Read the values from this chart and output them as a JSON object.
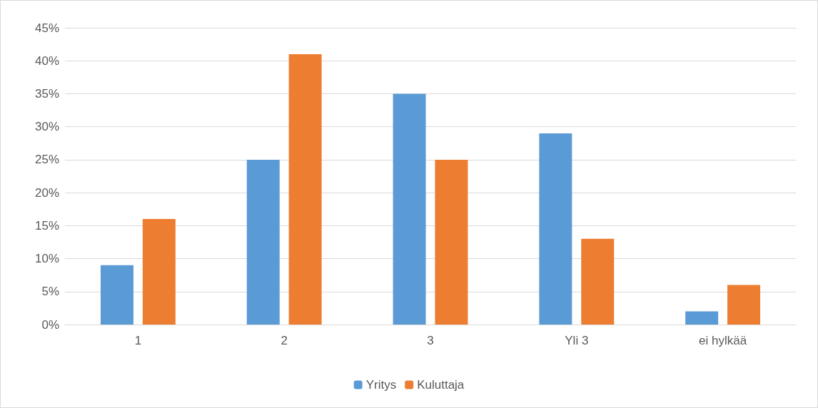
{
  "chart_data": {
    "type": "bar",
    "categories": [
      "1",
      "2",
      "3",
      "Yli 3",
      "ei hylkää"
    ],
    "series": [
      {
        "name": "Yritys",
        "color": "#5b9bd5",
        "values": [
          9,
          25,
          35,
          29,
          2
        ]
      },
      {
        "name": "Kuluttaja",
        "color": "#ed7d31",
        "values": [
          16,
          41,
          25,
          13,
          6
        ]
      }
    ],
    "ylim": [
      0,
      45
    ],
    "yticks": [
      {
        "value": 0,
        "label": "0%"
      },
      {
        "value": 5,
        "label": "5%"
      },
      {
        "value": 10,
        "label": "10%"
      },
      {
        "value": 15,
        "label": "15%"
      },
      {
        "value": 20,
        "label": "20%"
      },
      {
        "value": 25,
        "label": "25%"
      },
      {
        "value": 30,
        "label": "30%"
      },
      {
        "value": 35,
        "label": "35%"
      },
      {
        "value": 40,
        "label": "40%"
      },
      {
        "value": 45,
        "label": "45%"
      }
    ],
    "grid": "y",
    "legend": "bottom"
  }
}
